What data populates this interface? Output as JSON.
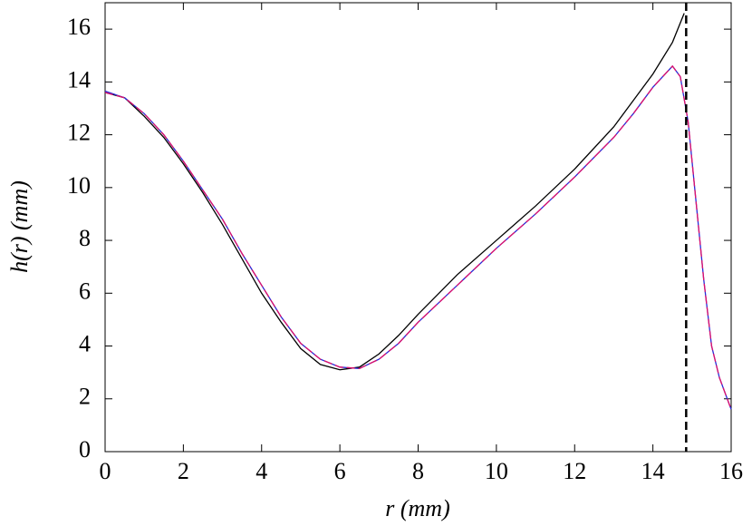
{
  "chart_data": {
    "type": "line",
    "xlabel": "r (mm)",
    "ylabel": "h(r) (mm)",
    "xlim": [
      0,
      16
    ],
    "ylim": [
      0,
      17
    ],
    "xticks": [
      0,
      2,
      4,
      6,
      8,
      10,
      12,
      14,
      16
    ],
    "yticks": [
      0,
      2,
      4,
      6,
      8,
      10,
      12,
      14,
      16
    ],
    "vline": 14.85,
    "vline_color": "#000000",
    "series": [
      {
        "color": "#000000",
        "dash": false,
        "x": [
          0,
          0.5,
          1,
          1.5,
          2,
          2.5,
          3,
          3.5,
          4,
          4.5,
          5,
          5.5,
          6,
          6.5,
          7,
          7.5,
          8,
          9,
          10,
          11,
          12,
          13,
          13.5,
          14,
          14.5,
          14.8
        ],
        "values": [
          13.6,
          13.4,
          12.7,
          11.9,
          10.9,
          9.8,
          8.6,
          7.3,
          6.0,
          4.9,
          3.9,
          3.3,
          3.1,
          3.2,
          3.7,
          4.4,
          5.2,
          6.7,
          8.0,
          9.3,
          10.7,
          12.3,
          13.3,
          14.3,
          15.5,
          16.6
        ]
      },
      {
        "color": "#2a2ad6",
        "dash": false,
        "x": [
          0,
          0.5,
          1,
          1.5,
          2,
          2.5,
          3,
          3.5,
          4,
          4.5,
          5,
          5.5,
          6,
          6.5,
          7,
          7.5,
          8,
          9,
          10,
          11,
          12,
          13,
          13.5,
          14,
          14.5,
          14.7,
          14.9,
          15.1,
          15.3,
          15.5,
          15.7,
          16
        ],
        "values": [
          13.65,
          13.4,
          12.8,
          12.0,
          11.0,
          9.9,
          8.8,
          7.5,
          6.3,
          5.1,
          4.1,
          3.5,
          3.2,
          3.15,
          3.5,
          4.1,
          4.9,
          6.3,
          7.7,
          9.0,
          10.4,
          11.9,
          12.8,
          13.8,
          14.6,
          14.2,
          12.5,
          9.5,
          6.5,
          4.0,
          2.8,
          1.6
        ]
      },
      {
        "color": "#e0106a",
        "dash": true,
        "x": [
          0,
          0.5,
          1,
          1.5,
          2,
          2.5,
          3,
          3.5,
          4,
          4.5,
          5,
          5.5,
          6,
          6.5,
          7,
          7.5,
          8,
          9,
          10,
          11,
          12,
          13,
          13.5,
          14,
          14.5,
          14.7,
          14.9,
          15.1,
          15.3,
          15.5,
          15.7,
          16
        ],
        "values": [
          13.6,
          13.4,
          12.8,
          12.0,
          11.0,
          9.9,
          8.8,
          7.5,
          6.3,
          5.1,
          4.1,
          3.5,
          3.2,
          3.15,
          3.5,
          4.1,
          4.9,
          6.3,
          7.7,
          9.0,
          10.4,
          11.9,
          12.8,
          13.8,
          14.6,
          14.2,
          12.5,
          9.5,
          6.5,
          4.0,
          2.8,
          1.6
        ]
      }
    ]
  }
}
